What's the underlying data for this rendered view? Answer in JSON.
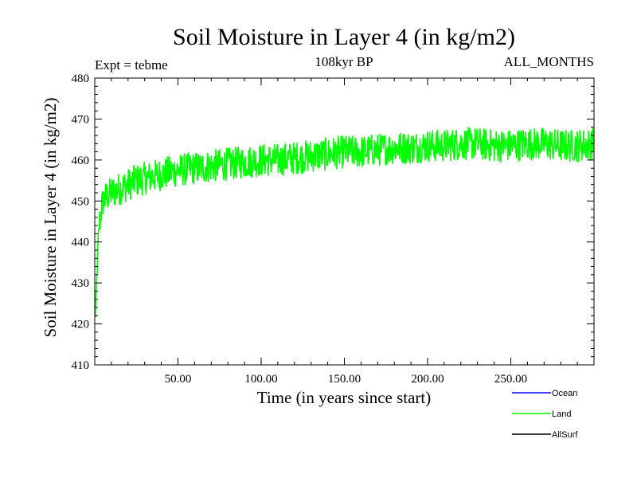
{
  "chart_data": {
    "type": "line",
    "title": "Soil Moisture in Layer 4 (in kg/m2)",
    "subtitle": "108kyr BP",
    "left_annotation": "Expt = tebme",
    "right_annotation": "ALL_MONTHS",
    "xlabel": "Time (in years since start)",
    "ylabel": "Soil Moisture in Layer 4 (in kg/m2)",
    "xlim": [
      0,
      300
    ],
    "ylim": [
      410,
      480
    ],
    "x_ticks": [
      50,
      100,
      150,
      200,
      250
    ],
    "x_tick_labels": [
      "50.00",
      "100.00",
      "150.00",
      "200.00",
      "250.00"
    ],
    "y_ticks": [
      410,
      420,
      430,
      440,
      450,
      460,
      470,
      480
    ],
    "y_tick_labels": [
      "410",
      "420",
      "430",
      "440",
      "450",
      "460",
      "470",
      "480"
    ],
    "x_minor_step": 10,
    "y_minor_step": 2,
    "legend_position": "bottom-right",
    "series": [
      {
        "name": "Ocean",
        "color": "#0000ff",
        "x": [],
        "values": []
      },
      {
        "name": "Land",
        "color": "#00ff00",
        "x": [
          0,
          0.5,
          1,
          1.5,
          2,
          3,
          4,
          5,
          7,
          10,
          15,
          20,
          25,
          30,
          35,
          40,
          45,
          50,
          60,
          70,
          80,
          90,
          100,
          110,
          120,
          130,
          140,
          150,
          160,
          170,
          180,
          190,
          200,
          210,
          220,
          230,
          240,
          250,
          260,
          270,
          280,
          290,
          300
        ],
        "values": [
          421,
          424,
          428,
          434,
          440,
          445,
          448,
          450,
          451,
          452,
          453,
          454,
          455,
          455.5,
          456,
          456.5,
          457,
          457.5,
          458,
          458.5,
          459,
          459.5,
          460,
          460,
          460.5,
          461,
          461.5,
          462,
          462,
          462.5,
          463,
          463,
          463.5,
          463.5,
          464,
          464,
          463.5,
          463.5,
          464,
          464,
          463.5,
          463.5,
          464
        ],
        "noise_amplitude": 4
      },
      {
        "name": "AllSurf",
        "color": "#000000",
        "x": [],
        "values": []
      }
    ]
  }
}
